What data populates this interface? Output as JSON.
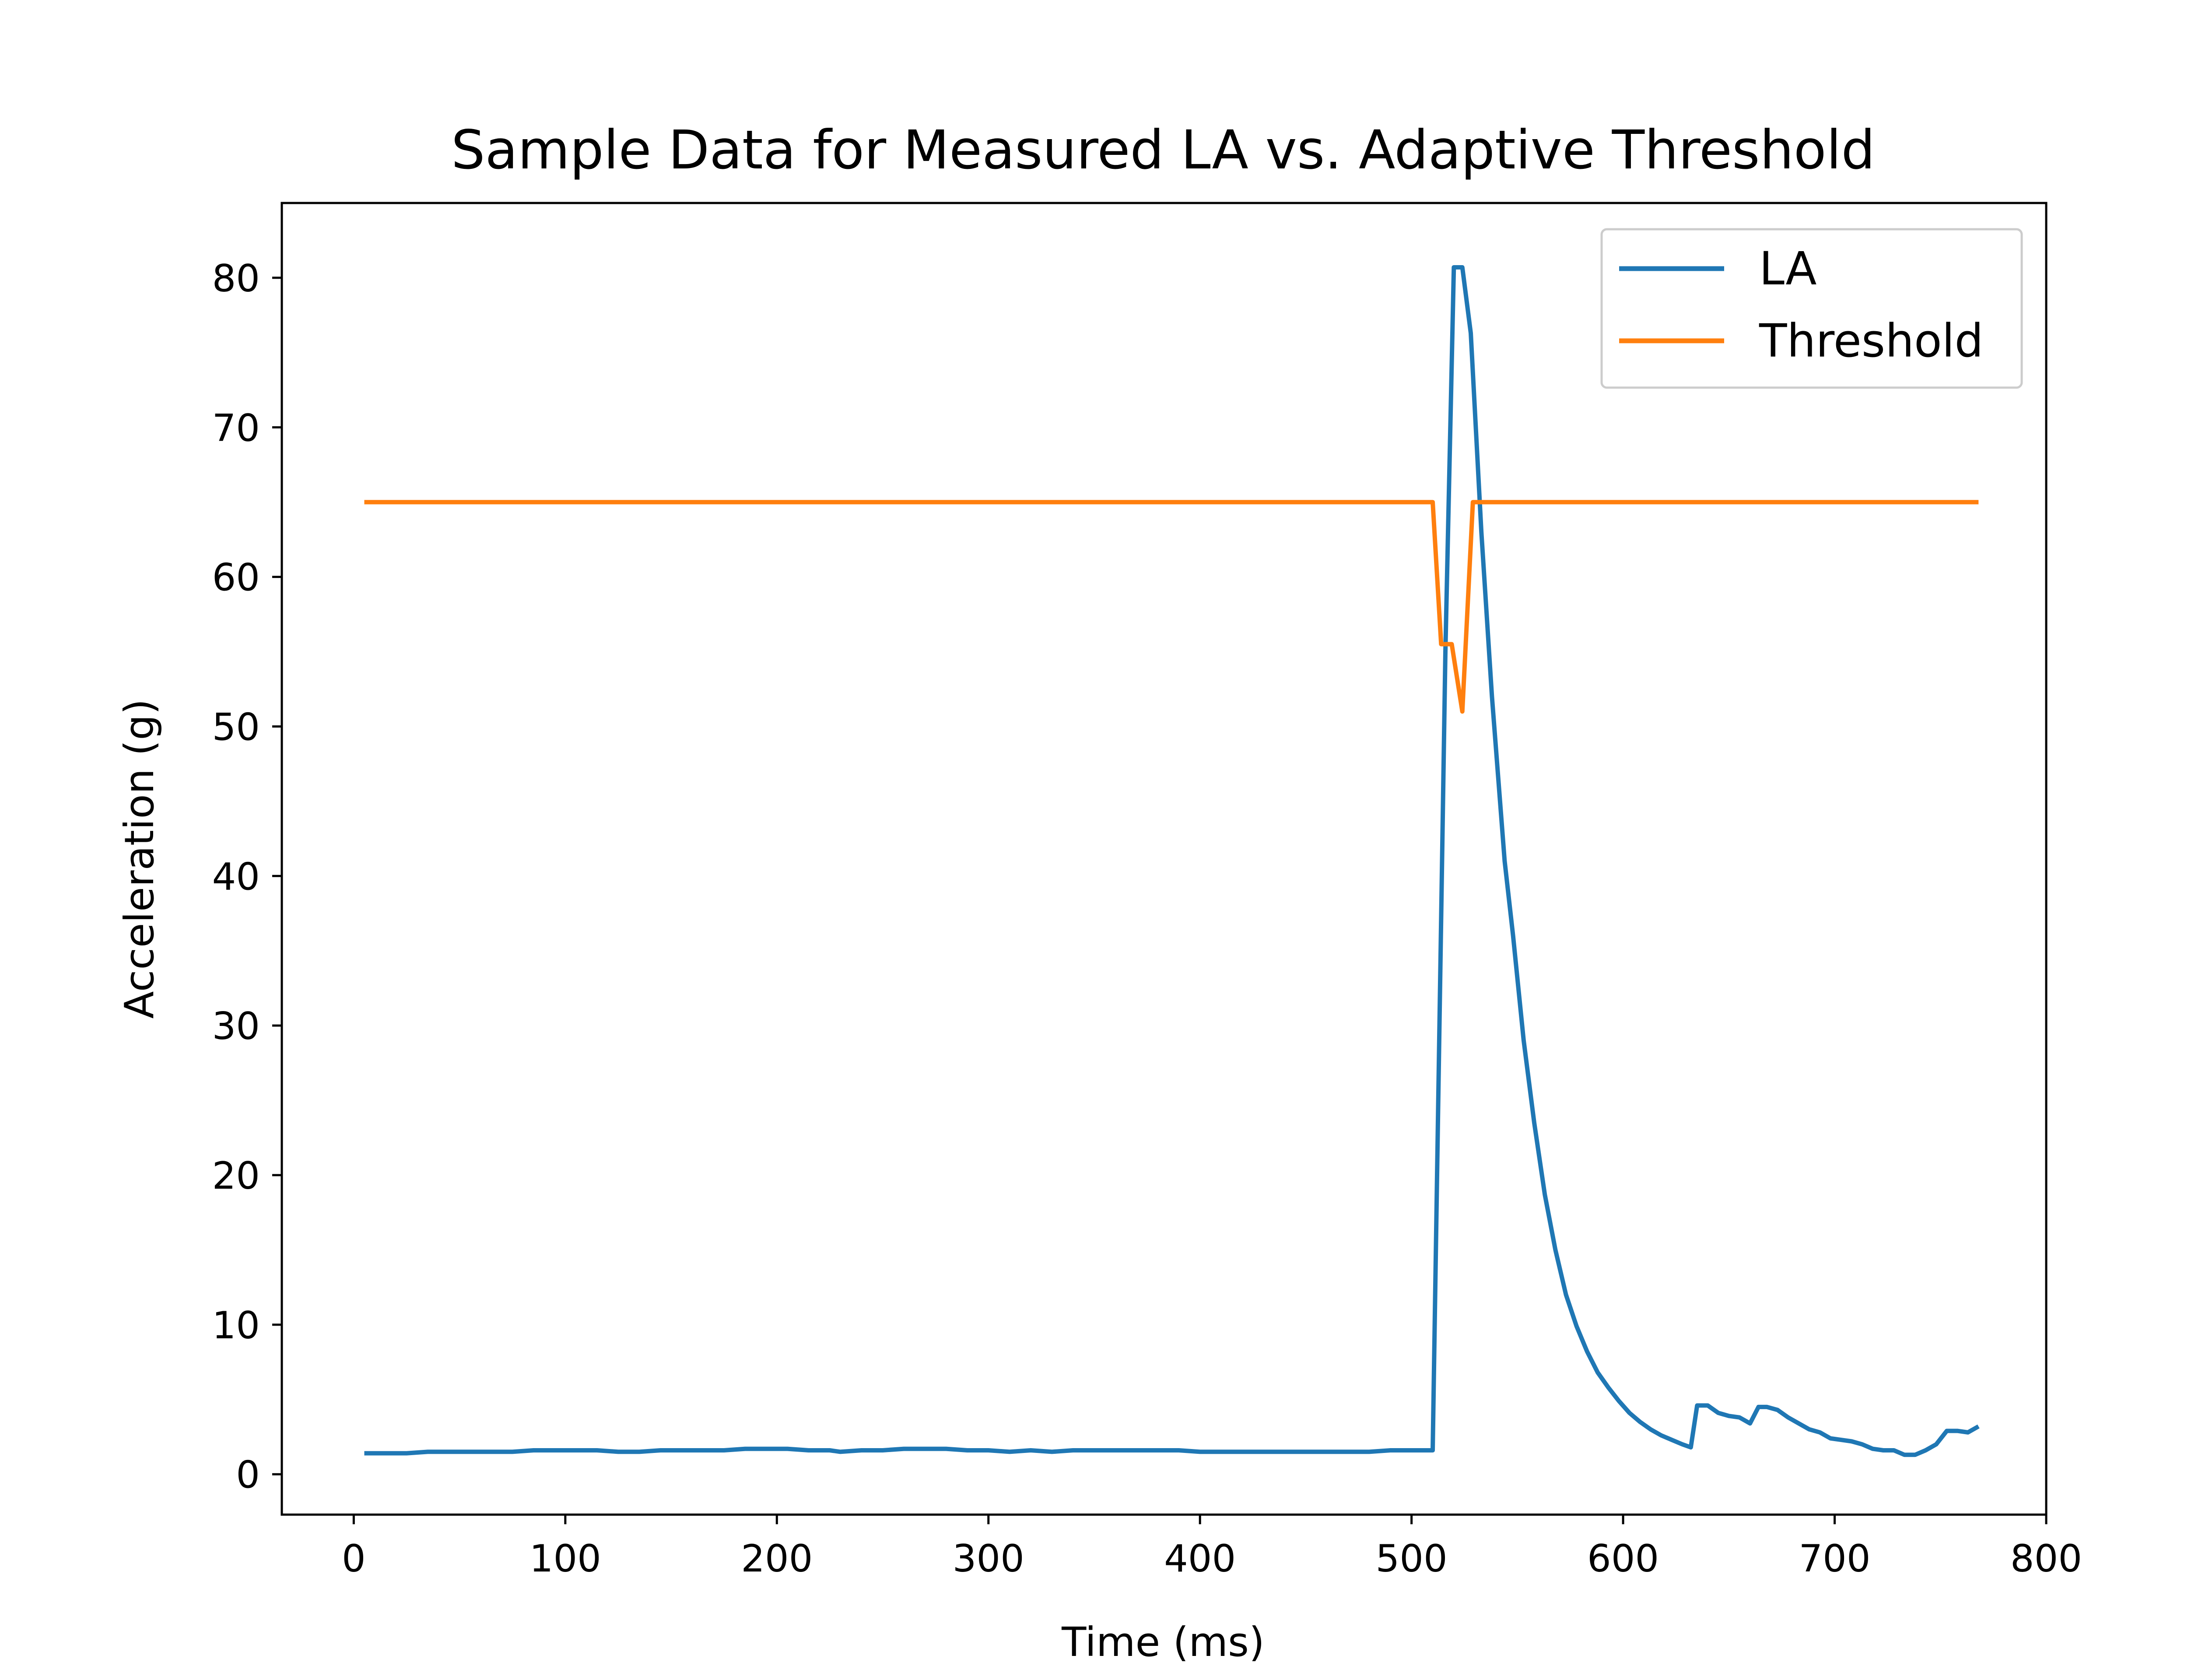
{
  "chart_data": {
    "type": "line",
    "title": "Sample Data for Measured LA vs. Adaptive Threshold",
    "xlabel": "Time (ms)",
    "ylabel": "Acceleration (g)",
    "xlim": [
      -34,
      800
    ],
    "ylim": [
      -2.7,
      85
    ],
    "xticks": [
      0,
      100,
      200,
      300,
      400,
      500,
      600,
      700,
      800
    ],
    "yticks": [
      0,
      10,
      20,
      30,
      40,
      50,
      60,
      70,
      80
    ],
    "grid": false,
    "legend_position": "top-right",
    "series": [
      {
        "name": "LA",
        "color": "#1f77b4",
        "points": [
          [
            5,
            1.4
          ],
          [
            15,
            1.4
          ],
          [
            25,
            1.4
          ],
          [
            35,
            1.5
          ],
          [
            45,
            1.5
          ],
          [
            55,
            1.5
          ],
          [
            65,
            1.5
          ],
          [
            75,
            1.5
          ],
          [
            85,
            1.6
          ],
          [
            95,
            1.6
          ],
          [
            105,
            1.6
          ],
          [
            115,
            1.6
          ],
          [
            125,
            1.5
          ],
          [
            135,
            1.5
          ],
          [
            145,
            1.6
          ],
          [
            155,
            1.6
          ],
          [
            165,
            1.6
          ],
          [
            175,
            1.6
          ],
          [
            185,
            1.7
          ],
          [
            195,
            1.7
          ],
          [
            205,
            1.7
          ],
          [
            215,
            1.6
          ],
          [
            225,
            1.6
          ],
          [
            230,
            1.5
          ],
          [
            240,
            1.6
          ],
          [
            250,
            1.6
          ],
          [
            260,
            1.7
          ],
          [
            270,
            1.7
          ],
          [
            280,
            1.7
          ],
          [
            290,
            1.6
          ],
          [
            300,
            1.6
          ],
          [
            310,
            1.5
          ],
          [
            320,
            1.6
          ],
          [
            330,
            1.5
          ],
          [
            340,
            1.6
          ],
          [
            350,
            1.6
          ],
          [
            360,
            1.6
          ],
          [
            370,
            1.6
          ],
          [
            380,
            1.6
          ],
          [
            390,
            1.6
          ],
          [
            400,
            1.5
          ],
          [
            410,
            1.5
          ],
          [
            420,
            1.5
          ],
          [
            430,
            1.5
          ],
          [
            440,
            1.5
          ],
          [
            450,
            1.5
          ],
          [
            460,
            1.5
          ],
          [
            470,
            1.5
          ],
          [
            480,
            1.5
          ],
          [
            490,
            1.6
          ],
          [
            500,
            1.6
          ],
          [
            505,
            1.6
          ],
          [
            510,
            1.6
          ],
          [
            516,
            55
          ],
          [
            520,
            80.7
          ],
          [
            524,
            80.7
          ],
          [
            528,
            76.3
          ],
          [
            533,
            63
          ],
          [
            538,
            52
          ],
          [
            544,
            41
          ],
          [
            548,
            36
          ],
          [
            553,
            29
          ],
          [
            558,
            23.5
          ],
          [
            563,
            18.7
          ],
          [
            568,
            15
          ],
          [
            573,
            12
          ],
          [
            578,
            9.9
          ],
          [
            583,
            8.2
          ],
          [
            588,
            6.8
          ],
          [
            593,
            5.8
          ],
          [
            598,
            4.9
          ],
          [
            603,
            4.1
          ],
          [
            608,
            3.5
          ],
          [
            613,
            3.0
          ],
          [
            618,
            2.6
          ],
          [
            623,
            2.3
          ],
          [
            628,
            2.0
          ],
          [
            632,
            1.8
          ],
          [
            635,
            4.6
          ],
          [
            640,
            4.6
          ],
          [
            645,
            4.1
          ],
          [
            650,
            3.9
          ],
          [
            655,
            3.8
          ],
          [
            660,
            3.4
          ],
          [
            664,
            4.5
          ],
          [
            668,
            4.5
          ],
          [
            673,
            4.3
          ],
          [
            678,
            3.8
          ],
          [
            683,
            3.4
          ],
          [
            688,
            3.0
          ],
          [
            693,
            2.8
          ],
          [
            698,
            2.4
          ],
          [
            703,
            2.3
          ],
          [
            708,
            2.2
          ],
          [
            713,
            2.0
          ],
          [
            718,
            1.7
          ],
          [
            723,
            1.6
          ],
          [
            728,
            1.6
          ],
          [
            733,
            1.3
          ],
          [
            738,
            1.3
          ],
          [
            743,
            1.6
          ],
          [
            748,
            2.0
          ],
          [
            753,
            2.9
          ],
          [
            758,
            2.9
          ],
          [
            763,
            2.8
          ],
          [
            768,
            3.2
          ]
        ]
      },
      {
        "name": "Threshold",
        "color": "#ff7f0e",
        "points": [
          [
            5,
            65
          ],
          [
            510,
            65
          ],
          [
            514,
            55.5
          ],
          [
            519,
            55.5
          ],
          [
            524,
            51
          ],
          [
            529,
            65
          ],
          [
            768,
            65
          ]
        ]
      }
    ]
  }
}
